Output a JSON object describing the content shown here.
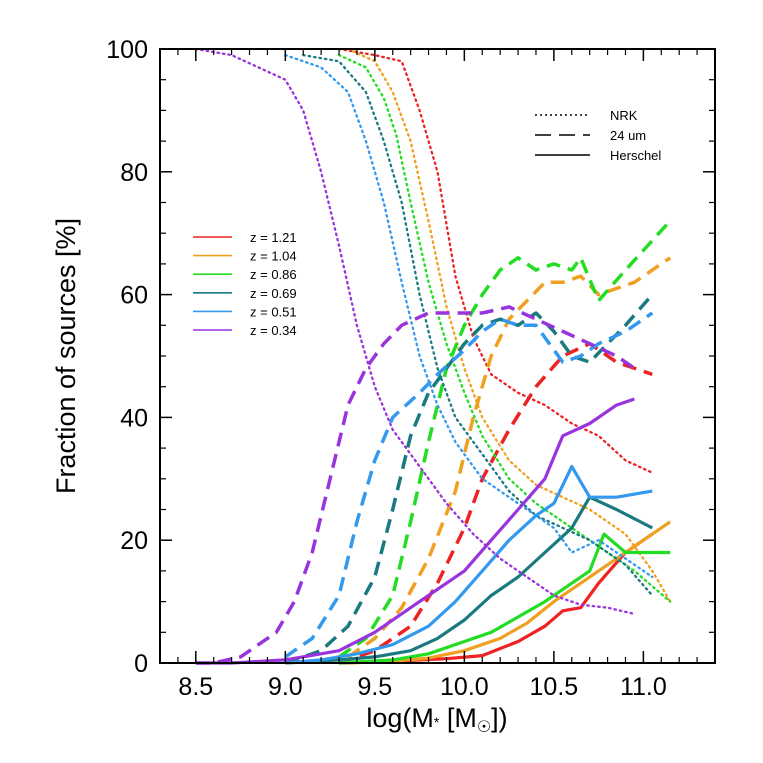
{
  "chart_data": {
    "type": "line",
    "xlabel_parts": {
      "pre": "log(M",
      "star": "*",
      "mid": " [M",
      "sun": "☉",
      "post": "])"
    },
    "ylabel": "Fraction of sources [%]",
    "xlim": [
      8.3,
      11.4
    ],
    "ylim": [
      0,
      100
    ],
    "xticks": [
      "8.5",
      "9.0",
      "9.5",
      "10.0",
      "10.5",
      "11.0"
    ],
    "yticks": [
      "0",
      "20",
      "40",
      "60",
      "80",
      "100"
    ],
    "legend_styles": [
      {
        "label": "NRK",
        "dash": "dotted"
      },
      {
        "label": "24 um",
        "dash": "dashed"
      },
      {
        "label": "Herschel",
        "dash": "solid"
      }
    ],
    "series": [
      {
        "name": "z = 1.21",
        "color": "#ee2222",
        "nrk": [
          [
            9.3,
            100
          ],
          [
            9.5,
            99
          ],
          [
            9.65,
            98
          ],
          [
            9.75,
            90
          ],
          [
            9.85,
            80
          ],
          [
            9.95,
            63
          ],
          [
            10.05,
            53
          ],
          [
            10.15,
            47
          ],
          [
            10.3,
            44
          ],
          [
            10.45,
            42
          ],
          [
            10.6,
            39
          ],
          [
            10.75,
            37
          ],
          [
            10.9,
            33
          ],
          [
            11.05,
            31
          ]
        ],
        "mips": [
          [
            9.3,
            0
          ],
          [
            9.5,
            2
          ],
          [
            9.7,
            6
          ],
          [
            9.85,
            13
          ],
          [
            10.0,
            22
          ],
          [
            10.1,
            30
          ],
          [
            10.25,
            38
          ],
          [
            10.4,
            45
          ],
          [
            10.55,
            50
          ],
          [
            10.7,
            52
          ],
          [
            10.85,
            49
          ],
          [
            11.05,
            47
          ]
        ],
        "herschel": [
          [
            9.3,
            0
          ],
          [
            9.6,
            0.3
          ],
          [
            9.9,
            0.7
          ],
          [
            10.1,
            1.2
          ],
          [
            10.3,
            3.5
          ],
          [
            10.45,
            6
          ],
          [
            10.55,
            8.5
          ],
          [
            10.65,
            9
          ],
          [
            10.75,
            13
          ],
          [
            10.9,
            18
          ],
          [
            11.05,
            21
          ]
        ]
      },
      {
        "name": "z = 1.04",
        "color": "#f0a020",
        "nrk": [
          [
            9.35,
            100
          ],
          [
            9.5,
            98
          ],
          [
            9.6,
            93
          ],
          [
            9.7,
            85
          ],
          [
            9.8,
            72
          ],
          [
            9.9,
            58
          ],
          [
            10.0,
            48
          ],
          [
            10.1,
            40
          ],
          [
            10.25,
            33
          ],
          [
            10.4,
            29
          ],
          [
            10.55,
            27
          ],
          [
            10.7,
            25
          ],
          [
            10.9,
            21
          ],
          [
            11.05,
            15
          ],
          [
            11.15,
            10
          ]
        ],
        "mips": [
          [
            9.35,
            1
          ],
          [
            9.5,
            4
          ],
          [
            9.65,
            9
          ],
          [
            9.8,
            17
          ],
          [
            9.95,
            28
          ],
          [
            10.05,
            40
          ],
          [
            10.15,
            50
          ],
          [
            10.25,
            56
          ],
          [
            10.35,
            59
          ],
          [
            10.45,
            62
          ],
          [
            10.55,
            62
          ],
          [
            10.65,
            63
          ],
          [
            10.75,
            60
          ],
          [
            10.95,
            62
          ],
          [
            11.15,
            66
          ]
        ],
        "herschel": [
          [
            9.35,
            0
          ],
          [
            9.6,
            0.3
          ],
          [
            9.8,
            0.8
          ],
          [
            10.0,
            2
          ],
          [
            10.2,
            4
          ],
          [
            10.35,
            6.5
          ],
          [
            10.5,
            10
          ],
          [
            10.65,
            13
          ],
          [
            10.8,
            16
          ],
          [
            10.95,
            19
          ],
          [
            11.15,
            23
          ]
        ]
      },
      {
        "name": "z = 0.86",
        "color": "#22dd22",
        "nrk": [
          [
            9.3,
            99
          ],
          [
            9.45,
            97
          ],
          [
            9.55,
            92
          ],
          [
            9.62,
            86
          ],
          [
            9.7,
            75
          ],
          [
            9.8,
            62
          ],
          [
            9.9,
            52
          ],
          [
            10.0,
            44
          ],
          [
            10.1,
            37
          ],
          [
            10.25,
            30
          ],
          [
            10.4,
            26
          ],
          [
            10.6,
            22
          ],
          [
            10.8,
            18
          ],
          [
            10.95,
            15
          ],
          [
            11.15,
            10
          ]
        ],
        "mips": [
          [
            9.3,
            1
          ],
          [
            9.45,
            4
          ],
          [
            9.6,
            11
          ],
          [
            9.7,
            23
          ],
          [
            9.8,
            36
          ],
          [
            9.9,
            48
          ],
          [
            10.0,
            55
          ],
          [
            10.1,
            60
          ],
          [
            10.2,
            64
          ],
          [
            10.3,
            66
          ],
          [
            10.4,
            64
          ],
          [
            10.5,
            65
          ],
          [
            10.6,
            64
          ],
          [
            10.65,
            66
          ],
          [
            10.75,
            59
          ],
          [
            10.9,
            64
          ],
          [
            11.15,
            72
          ]
        ],
        "herschel": [
          [
            9.3,
            0
          ],
          [
            9.6,
            0.5
          ],
          [
            9.8,
            1.5
          ],
          [
            10.0,
            3.5
          ],
          [
            10.15,
            5
          ],
          [
            10.3,
            7.5
          ],
          [
            10.45,
            10
          ],
          [
            10.6,
            13
          ],
          [
            10.7,
            15
          ],
          [
            10.78,
            21
          ],
          [
            10.9,
            18
          ],
          [
            11.15,
            18
          ]
        ]
      },
      {
        "name": "z = 0.69",
        "color": "#1a7a80",
        "nrk": [
          [
            9.1,
            99
          ],
          [
            9.3,
            98
          ],
          [
            9.45,
            93
          ],
          [
            9.55,
            85
          ],
          [
            9.65,
            75
          ],
          [
            9.75,
            60
          ],
          [
            9.85,
            48
          ],
          [
            9.95,
            40
          ],
          [
            10.1,
            34
          ],
          [
            10.25,
            28
          ],
          [
            10.4,
            24
          ],
          [
            10.55,
            22
          ],
          [
            10.7,
            20
          ],
          [
            10.9,
            16
          ],
          [
            11.05,
            11
          ]
        ],
        "mips": [
          [
            9.0,
            0
          ],
          [
            9.2,
            2
          ],
          [
            9.35,
            6
          ],
          [
            9.5,
            14
          ],
          [
            9.6,
            25
          ],
          [
            9.7,
            37
          ],
          [
            9.8,
            44
          ],
          [
            9.9,
            48
          ],
          [
            10.0,
            52
          ],
          [
            10.1,
            55
          ],
          [
            10.2,
            56
          ],
          [
            10.3,
            55
          ],
          [
            10.4,
            57
          ],
          [
            10.5,
            54
          ],
          [
            10.6,
            50
          ],
          [
            10.7,
            49
          ],
          [
            10.8,
            52
          ],
          [
            10.9,
            55
          ],
          [
            11.05,
            60
          ]
        ],
        "herschel": [
          [
            9.0,
            0
          ],
          [
            9.3,
            0.5
          ],
          [
            9.5,
            1
          ],
          [
            9.7,
            2
          ],
          [
            9.85,
            4
          ],
          [
            10.0,
            7
          ],
          [
            10.15,
            11
          ],
          [
            10.3,
            14
          ],
          [
            10.45,
            18
          ],
          [
            10.6,
            22
          ],
          [
            10.7,
            27
          ],
          [
            10.85,
            25
          ],
          [
            11.05,
            22
          ]
        ]
      },
      {
        "name": "z = 0.51",
        "color": "#3399ee",
        "nrk": [
          [
            9.0,
            99
          ],
          [
            9.2,
            97
          ],
          [
            9.35,
            93
          ],
          [
            9.45,
            85
          ],
          [
            9.55,
            75
          ],
          [
            9.65,
            62
          ],
          [
            9.75,
            50
          ],
          [
            9.85,
            42
          ],
          [
            9.95,
            36
          ],
          [
            10.1,
            30
          ],
          [
            10.3,
            26
          ],
          [
            10.5,
            22
          ],
          [
            10.6,
            18
          ],
          [
            10.75,
            20
          ],
          [
            10.9,
            17
          ],
          [
            11.05,
            14
          ]
        ],
        "mips": [
          [
            9.0,
            1
          ],
          [
            9.15,
            4
          ],
          [
            9.3,
            11
          ],
          [
            9.4,
            23
          ],
          [
            9.5,
            33
          ],
          [
            9.6,
            40
          ],
          [
            9.75,
            44
          ],
          [
            9.85,
            47
          ],
          [
            10.0,
            51
          ],
          [
            10.1,
            54
          ],
          [
            10.2,
            56
          ],
          [
            10.3,
            55
          ],
          [
            10.4,
            55
          ],
          [
            10.5,
            51
          ],
          [
            10.55,
            49
          ],
          [
            10.65,
            50
          ],
          [
            10.75,
            52
          ],
          [
            10.9,
            54
          ],
          [
            11.05,
            57
          ]
        ],
        "herschel": [
          [
            9.0,
            0
          ],
          [
            9.2,
            0.5
          ],
          [
            9.4,
            1.5
          ],
          [
            9.6,
            3
          ],
          [
            9.8,
            6
          ],
          [
            9.95,
            10
          ],
          [
            10.1,
            15
          ],
          [
            10.25,
            20
          ],
          [
            10.4,
            24
          ],
          [
            10.5,
            26
          ],
          [
            10.6,
            32
          ],
          [
            10.7,
            27
          ],
          [
            10.85,
            27
          ],
          [
            11.05,
            28
          ]
        ]
      },
      {
        "name": "z = 0.34",
        "color": "#9933dd",
        "nrk": [
          [
            8.5,
            100
          ],
          [
            8.7,
            99
          ],
          [
            8.85,
            97
          ],
          [
            9.0,
            95
          ],
          [
            9.1,
            90
          ],
          [
            9.2,
            80
          ],
          [
            9.3,
            68
          ],
          [
            9.4,
            55
          ],
          [
            9.5,
            45
          ],
          [
            9.6,
            38
          ],
          [
            9.75,
            32
          ],
          [
            9.9,
            26
          ],
          [
            10.05,
            21
          ],
          [
            10.2,
            17
          ],
          [
            10.35,
            14
          ],
          [
            10.5,
            11
          ],
          [
            10.65,
            9.5
          ],
          [
            10.8,
            9
          ],
          [
            10.95,
            8
          ]
        ],
        "mips": [
          [
            8.5,
            0
          ],
          [
            8.6,
            0
          ],
          [
            8.75,
            1
          ],
          [
            8.85,
            3
          ],
          [
            8.95,
            5
          ],
          [
            9.05,
            10
          ],
          [
            9.15,
            18
          ],
          [
            9.25,
            30
          ],
          [
            9.35,
            42
          ],
          [
            9.45,
            48
          ],
          [
            9.55,
            52
          ],
          [
            9.65,
            55
          ],
          [
            9.8,
            57
          ],
          [
            9.95,
            57
          ],
          [
            10.1,
            57
          ],
          [
            10.25,
            58
          ],
          [
            10.4,
            56
          ],
          [
            10.55,
            54
          ],
          [
            10.7,
            52
          ],
          [
            10.85,
            50
          ],
          [
            10.95,
            48
          ]
        ],
        "herschel": [
          [
            8.5,
            0
          ],
          [
            8.7,
            0
          ],
          [
            9.0,
            0.5
          ],
          [
            9.3,
            2
          ],
          [
            9.5,
            5
          ],
          [
            9.7,
            9
          ],
          [
            9.85,
            12
          ],
          [
            10.0,
            15
          ],
          [
            10.15,
            20
          ],
          [
            10.3,
            25
          ],
          [
            10.45,
            30
          ],
          [
            10.55,
            37
          ],
          [
            10.7,
            39
          ],
          [
            10.85,
            42
          ],
          [
            10.95,
            43
          ]
        ]
      }
    ]
  }
}
